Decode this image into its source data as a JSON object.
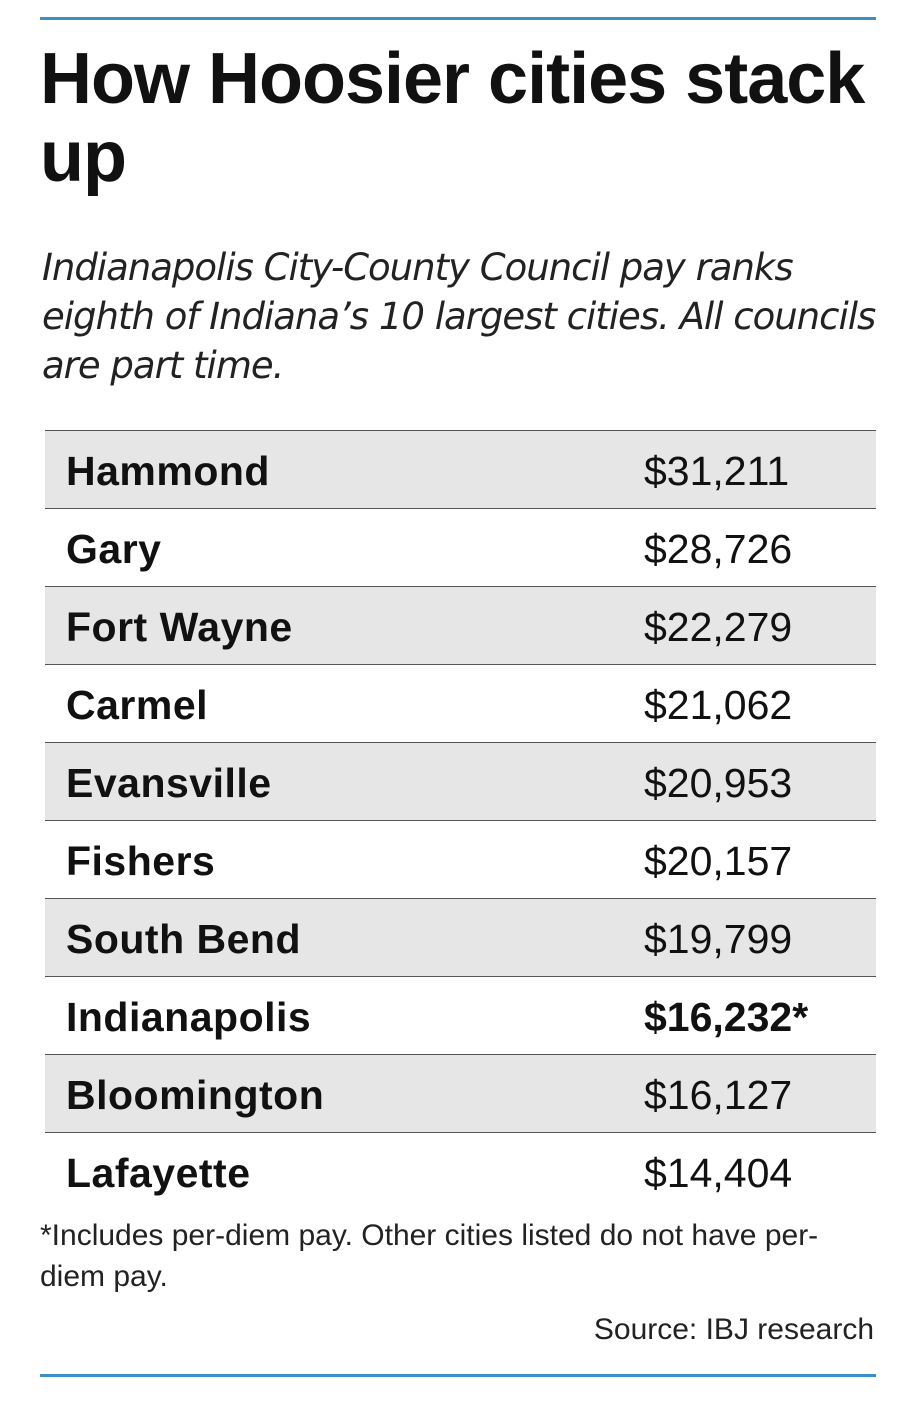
{
  "chart_data": {
    "type": "table",
    "title": "How Hoosier cities stack up",
    "subtitle": "Indianapolis City-County Council pay ranks eighth of Indiana’s 10 largest cities. All councils are part time.",
    "rows": [
      {
        "city": "Hammond",
        "pay": "$31,211",
        "value": 31211,
        "highlight": false
      },
      {
        "city": "Gary",
        "pay": "$28,726",
        "value": 28726,
        "highlight": false
      },
      {
        "city": "Fort Wayne",
        "pay": "$22,279",
        "value": 22279,
        "highlight": false
      },
      {
        "city": "Carmel",
        "pay": "$21,062",
        "value": 21062,
        "highlight": false
      },
      {
        "city": "Evansville",
        "pay": "$20,953",
        "value": 20953,
        "highlight": false
      },
      {
        "city": "Fishers",
        "pay": "$20,157",
        "value": 20157,
        "highlight": false
      },
      {
        "city": "South Bend",
        "pay": "$19,799",
        "value": 19799,
        "highlight": false
      },
      {
        "city": "Indianapolis",
        "pay": "$16,232*",
        "value": 16232,
        "highlight": true
      },
      {
        "city": "Bloomington",
        "pay": "$16,127",
        "value": 16127,
        "highlight": false
      },
      {
        "city": "Lafayette",
        "pay": "$14,404",
        "value": 14404,
        "highlight": false
      }
    ],
    "footnote": "*Includes per-diem pay. Other cities listed do not have per-diem pay.",
    "source": "Source: IBJ research"
  },
  "colors": {
    "rule": "#3a8fc9",
    "shaded_row": "#e6e6e7",
    "text": "#111111"
  }
}
